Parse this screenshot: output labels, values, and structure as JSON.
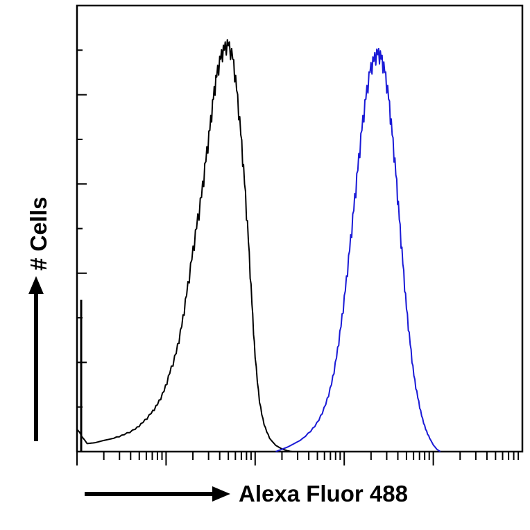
{
  "chart_data": {
    "type": "line",
    "title": "",
    "xlabel": "Alexa Fluor 488",
    "ylabel": "# Cells",
    "x_scale": "log",
    "xlim": [
      1,
      100000
    ],
    "ylim": [
      0,
      100
    ],
    "grid": false,
    "legend": "none",
    "tick_labels_visible": false,
    "series": [
      {
        "color": "#000000",
        "points": [
          [
            1.0,
            5
          ],
          [
            1.3,
            1.8
          ],
          [
            1.6,
            2
          ],
          [
            2,
            2.5
          ],
          [
            2.6,
            3
          ],
          [
            3.4,
            3.8
          ],
          [
            4.5,
            5
          ],
          [
            5.5,
            6.5
          ],
          [
            6.8,
            8.5
          ],
          [
            8,
            10.5
          ],
          [
            9.5,
            13.5
          ],
          [
            11,
            17.5
          ],
          [
            13,
            22
          ],
          [
            15,
            28
          ],
          [
            17,
            35
          ],
          [
            19.5,
            43
          ],
          [
            22,
            50
          ],
          [
            25,
            57
          ],
          [
            28,
            65
          ],
          [
            31,
            72
          ],
          [
            34,
            79
          ],
          [
            37,
            84
          ],
          [
            41,
            88
          ],
          [
            45,
            90
          ],
          [
            50,
            91
          ],
          [
            56,
            88
          ],
          [
            62,
            81
          ],
          [
            69,
            71
          ],
          [
            76,
            60
          ],
          [
            84,
            47
          ],
          [
            92,
            33
          ],
          [
            100,
            21
          ],
          [
            112,
            11
          ],
          [
            126,
            6
          ],
          [
            145,
            3
          ],
          [
            170,
            1.4
          ],
          [
            200,
            0.6
          ],
          [
            230,
            0.2
          ],
          [
            260,
            0
          ]
        ]
      },
      {
        "color": "#1a1ad6",
        "points": [
          [
            170,
            0
          ],
          [
            230,
            1
          ],
          [
            320,
            2.5
          ],
          [
            420,
            4.5
          ],
          [
            520,
            7
          ],
          [
            620,
            10.5
          ],
          [
            720,
            15
          ],
          [
            820,
            21
          ],
          [
            920,
            28
          ],
          [
            1030,
            36
          ],
          [
            1150,
            45
          ],
          [
            1280,
            54
          ],
          [
            1420,
            63
          ],
          [
            1580,
            72
          ],
          [
            1750,
            79
          ],
          [
            1950,
            85
          ],
          [
            2150,
            87.5
          ],
          [
            2380,
            89
          ],
          [
            2600,
            88
          ],
          [
            2850,
            85
          ],
          [
            3150,
            79
          ],
          [
            3450,
            71
          ],
          [
            3800,
            62
          ],
          [
            4150,
            52
          ],
          [
            4550,
            42
          ],
          [
            5000,
            32
          ],
          [
            5500,
            24
          ],
          [
            6050,
            17
          ],
          [
            6700,
            12
          ],
          [
            7400,
            8
          ],
          [
            8200,
            5
          ],
          [
            9100,
            3
          ],
          [
            10000,
            1.5
          ],
          [
            11000,
            0.5
          ],
          [
            12000,
            0
          ]
        ]
      }
    ]
  }
}
